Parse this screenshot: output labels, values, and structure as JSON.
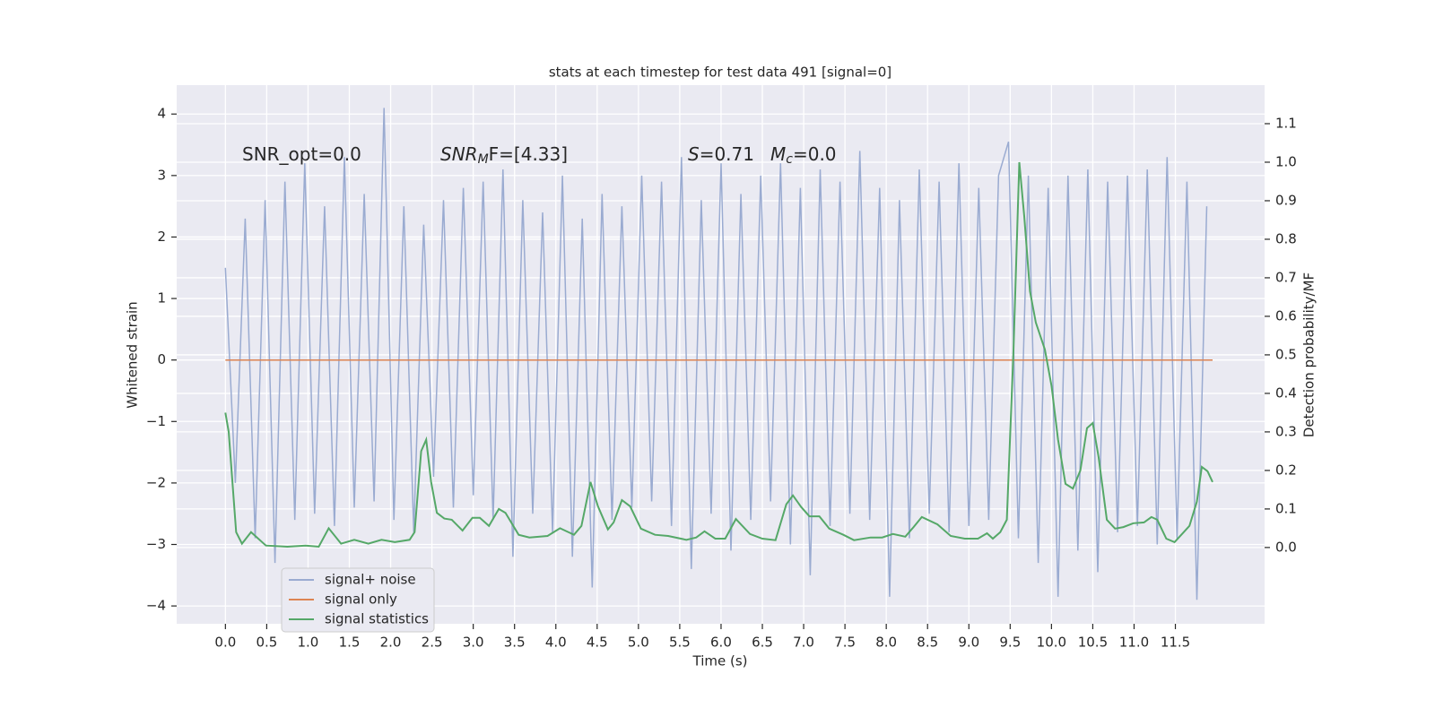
{
  "chart_data": {
    "type": "line",
    "title": "stats at each timestep for test data 491 [signal=0]",
    "xlabel": "Time (s)",
    "ylabel": "Whitened strain",
    "y2label": "Detection probability/MF",
    "annotations": [
      {
        "text": "SNR_opt=0.0"
      },
      {
        "main": "SNR",
        "sub": "M",
        "rest": "F=[4.33]"
      },
      {
        "main": "S",
        "rest": "=0.71"
      },
      {
        "main": "M",
        "sub": "c",
        "rest": "=0.0"
      }
    ],
    "xlim": [
      -0.59,
      12.58
    ],
    "ylim": [
      -4.29,
      4.47
    ],
    "y2lim": [
      -0.198,
      1.2
    ],
    "xticks": [
      {
        "value": 0,
        "label": "0.0"
      },
      0.5,
      {
        "value": 1,
        "label": "1.0"
      },
      1.5,
      {
        "value": 2,
        "label": "2.0"
      },
      2.5,
      {
        "value": 3,
        "label": "3.0"
      },
      3.5,
      {
        "value": 4,
        "label": "4.0"
      },
      4.5,
      {
        "value": 5,
        "label": "5.0"
      },
      5.5,
      {
        "value": 6,
        "label": "6.0"
      },
      6.5,
      {
        "value": 7,
        "label": "7.0"
      },
      7.5,
      {
        "value": 8,
        "label": "8.0"
      },
      8.5,
      {
        "value": 9,
        "label": "9.0"
      },
      9.5,
      {
        "value": 10,
        "label": "10.0"
      },
      10.5,
      {
        "value": 11,
        "label": "11.0"
      },
      11.5
    ],
    "yticks": [
      {
        "value": -4,
        "label": "−4"
      },
      {
        "value": -3,
        "label": "−3"
      },
      {
        "value": -2,
        "label": "−2"
      },
      {
        "value": -1,
        "label": "−1"
      },
      0,
      1,
      2,
      3,
      4
    ],
    "y2ticks": [
      {
        "value": 0,
        "label": "0.0"
      },
      0.1,
      0.2,
      0.3,
      0.4,
      0.5,
      0.6,
      0.7,
      0.8,
      0.9,
      {
        "value": 1,
        "label": "1.0"
      },
      1.1
    ],
    "grid": true,
    "legend": "lower left",
    "series": [
      {
        "name": "signal+ noise",
        "color": "#9aabd1",
        "x": [
          0,
          0.12,
          0.24,
          0.36,
          0.48,
          0.6,
          0.72,
          0.84,
          0.96,
          1.08,
          1.2,
          1.32,
          1.44,
          1.56,
          1.68,
          1.8,
          1.92,
          2.04,
          2.16,
          2.28,
          2.4,
          2.52,
          2.64,
          2.76,
          2.88,
          3,
          3.12,
          3.24,
          3.36,
          3.48,
          3.6,
          3.72,
          3.84,
          3.96,
          4.08,
          4.2,
          4.32,
          4.44,
          4.56,
          4.68,
          4.8,
          4.92,
          5.04,
          5.16,
          5.28,
          5.4,
          5.52,
          5.64,
          5.76,
          5.88,
          6,
          6.12,
          6.24,
          6.36,
          6.48,
          6.6,
          6.72,
          6.84,
          6.96,
          7.08,
          7.2,
          7.32,
          7.44,
          7.56,
          7.68,
          7.8,
          7.92,
          8.04,
          8.16,
          8.28,
          8.4,
          8.52,
          8.64,
          8.76,
          8.88,
          9,
          9.12,
          9.24,
          9.36,
          9.48,
          9.6,
          9.72,
          9.84,
          9.96,
          10.08,
          10.2,
          10.32,
          10.44,
          10.56,
          10.68,
          10.8,
          10.92,
          11.04,
          11.16,
          11.28,
          11.4,
          11.52,
          11.64,
          11.76,
          11.88
        ],
        "values": [
          1.5,
          -2.0,
          2.3,
          -2.9,
          2.6,
          -3.3,
          2.9,
          -2.6,
          3.2,
          -2.5,
          2.5,
          -2.7,
          3.3,
          -2.4,
          2.7,
          -2.3,
          4.1,
          -2.6,
          2.5,
          -2.8,
          2.2,
          -1.9,
          2.6,
          -2.4,
          2.8,
          -2.2,
          2.9,
          -2.6,
          3.1,
          -3.2,
          2.6,
          -2.5,
          2.4,
          -2.8,
          3.0,
          -3.2,
          2.3,
          -3.7,
          2.7,
          -2.6,
          2.5,
          -2.4,
          3.0,
          -2.3,
          2.9,
          -2.7,
          3.3,
          -3.4,
          2.6,
          -2.5,
          3.2,
          -3.1,
          2.7,
          -2.6,
          3.0,
          -2.3,
          3.2,
          -3.0,
          2.8,
          -3.5,
          3.1,
          -2.7,
          2.9,
          -2.5,
          3.4,
          -2.6,
          2.8,
          -3.85,
          2.6,
          -2.9,
          3.1,
          -2.5,
          2.9,
          -2.8,
          3.2,
          -2.7,
          2.8,
          -2.6,
          3.0,
          3.55,
          -2.9,
          3.0,
          -3.3,
          2.8,
          -3.85,
          3.0,
          -3.1,
          3.1,
          -3.45,
          2.9,
          -2.8,
          3.0,
          -2.7,
          3.1,
          -3.0,
          3.3,
          -2.9,
          2.9,
          -3.9,
          2.5
        ]
      },
      {
        "name": "signal only",
        "color": "#dd8452",
        "x": [
          0,
          11.95
        ],
        "values": [
          0,
          0
        ]
      },
      {
        "name": "signal statistics",
        "color": "#55a868",
        "axis": "y2",
        "x": [
          0,
          0.04,
          0.13,
          0.2,
          0.31,
          0.49,
          0.75,
          0.97,
          1.13,
          1.25,
          1.4,
          1.56,
          1.73,
          1.89,
          2.05,
          2.23,
          2.29,
          2.37,
          2.43,
          2.49,
          2.56,
          2.65,
          2.74,
          2.87,
          2.99,
          3.08,
          3.19,
          3.31,
          3.39,
          3.55,
          3.68,
          3.9,
          4.05,
          4.22,
          4.31,
          4.42,
          4.51,
          4.63,
          4.7,
          4.8,
          4.9,
          5.03,
          5.2,
          5.36,
          5.58,
          5.7,
          5.8,
          5.93,
          6.05,
          6.18,
          6.35,
          6.5,
          6.66,
          6.79,
          6.87,
          6.97,
          7.07,
          7.19,
          7.31,
          7.48,
          7.61,
          7.81,
          7.95,
          8.08,
          8.23,
          8.33,
          8.43,
          8.62,
          8.78,
          8.95,
          9.11,
          9.22,
          9.29,
          9.38,
          9.46,
          9.54,
          9.61,
          9.67,
          9.74,
          9.81,
          9.92,
          10.0,
          10.08,
          10.17,
          10.26,
          10.35,
          10.43,
          10.5,
          10.57,
          10.67,
          10.77,
          10.87,
          10.99,
          11.12,
          11.21,
          11.28,
          11.39,
          11.49,
          11.61,
          11.67,
          11.76,
          11.82,
          11.89,
          11.95
        ],
        "values": [
          0.35,
          0.3,
          0.04,
          0.01,
          0.04,
          0.005,
          0.002,
          0.005,
          0.002,
          0.05,
          0.01,
          0.02,
          0.01,
          0.02,
          0.014,
          0.02,
          0.04,
          0.25,
          0.28,
          0.17,
          0.09,
          0.075,
          0.072,
          0.044,
          0.077,
          0.077,
          0.056,
          0.1,
          0.09,
          0.033,
          0.026,
          0.03,
          0.05,
          0.033,
          0.056,
          0.17,
          0.107,
          0.047,
          0.065,
          0.123,
          0.107,
          0.049,
          0.033,
          0.03,
          0.02,
          0.026,
          0.042,
          0.023,
          0.023,
          0.074,
          0.035,
          0.023,
          0.019,
          0.112,
          0.135,
          0.105,
          0.081,
          0.081,
          0.049,
          0.033,
          0.019,
          0.026,
          0.026,
          0.035,
          0.028,
          0.053,
          0.079,
          0.06,
          0.03,
          0.023,
          0.023,
          0.037,
          0.023,
          0.04,
          0.072,
          0.51,
          1.0,
          0.86,
          0.665,
          0.584,
          0.514,
          0.42,
          0.28,
          0.165,
          0.153,
          0.2,
          0.31,
          0.323,
          0.235,
          0.072,
          0.049,
          0.053,
          0.063,
          0.065,
          0.079,
          0.072,
          0.023,
          0.014,
          0.042,
          0.056,
          0.119,
          0.209,
          0.198,
          0.17
        ]
      }
    ]
  }
}
